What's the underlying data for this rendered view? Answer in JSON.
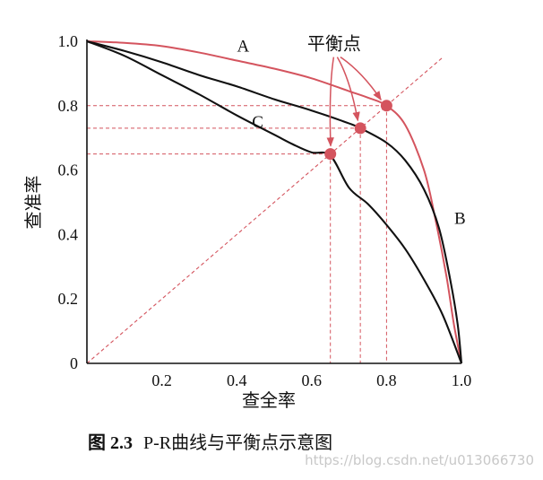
{
  "chart_data": {
    "type": "line",
    "xlabel": "查全率",
    "ylabel": "查准率",
    "xlim": [
      0,
      1.0
    ],
    "ylim": [
      0,
      1.0
    ],
    "x_ticks": [
      "0.2",
      "0.4",
      "0.6",
      "0.8",
      "1.0"
    ],
    "y_ticks": [
      "0",
      "0.2",
      "0.4",
      "0.6",
      "0.8",
      "1.0"
    ],
    "grid": false,
    "colors": {
      "A": "#d4545e",
      "B": "#111111",
      "C": "#111111",
      "guide": "#d4545e",
      "point": "#d4545e"
    },
    "series": [
      {
        "name": "A",
        "x": [
          0,
          0.1,
          0.2,
          0.3,
          0.4,
          0.5,
          0.6,
          0.7,
          0.75,
          0.8,
          0.85,
          0.9,
          0.93,
          0.96,
          0.98,
          1.0
        ],
        "y": [
          1.0,
          0.995,
          0.985,
          0.965,
          0.94,
          0.915,
          0.885,
          0.845,
          0.825,
          0.8,
          0.74,
          0.6,
          0.45,
          0.27,
          0.12,
          0.0
        ]
      },
      {
        "name": "B",
        "x": [
          0,
          0.1,
          0.2,
          0.3,
          0.4,
          0.5,
          0.6,
          0.7,
          0.73,
          0.8,
          0.85,
          0.9,
          0.94,
          0.97,
          0.99,
          1.0
        ],
        "y": [
          1.0,
          0.97,
          0.935,
          0.895,
          0.86,
          0.82,
          0.785,
          0.745,
          0.73,
          0.685,
          0.63,
          0.54,
          0.42,
          0.26,
          0.12,
          0.0
        ]
      },
      {
        "name": "C",
        "x": [
          0,
          0.1,
          0.2,
          0.3,
          0.4,
          0.5,
          0.55,
          0.6,
          0.65,
          0.7,
          0.75,
          0.8,
          0.85,
          0.9,
          0.95,
          1.0
        ],
        "y": [
          1.0,
          0.955,
          0.895,
          0.835,
          0.77,
          0.71,
          0.68,
          0.655,
          0.645,
          0.545,
          0.495,
          0.43,
          0.355,
          0.26,
          0.15,
          0.0
        ]
      }
    ],
    "curve_labels": [
      {
        "text": "A",
        "x": 0.42,
        "y": 0.985
      },
      {
        "text": "B",
        "x": 1.0,
        "y": 0.45
      },
      {
        "text": "C",
        "x": 0.46,
        "y": 0.75
      }
    ],
    "break_even_line": {
      "from": [
        0,
        0
      ],
      "to": [
        0.95,
        0.95
      ]
    },
    "break_even_points": [
      {
        "series": "C",
        "x": 0.65,
        "y": 0.65
      },
      {
        "series": "B",
        "x": 0.73,
        "y": 0.73
      },
      {
        "series": "A",
        "x": 0.8,
        "y": 0.8
      }
    ],
    "annotation": {
      "text": "平衡点",
      "x": 0.66,
      "y": 0.99
    }
  },
  "caption": {
    "prefix": "图 ",
    "number": "2.3",
    "text": "P-R曲线与平衡点示意图"
  },
  "watermark": "https://blog.csdn.net/u013066730"
}
